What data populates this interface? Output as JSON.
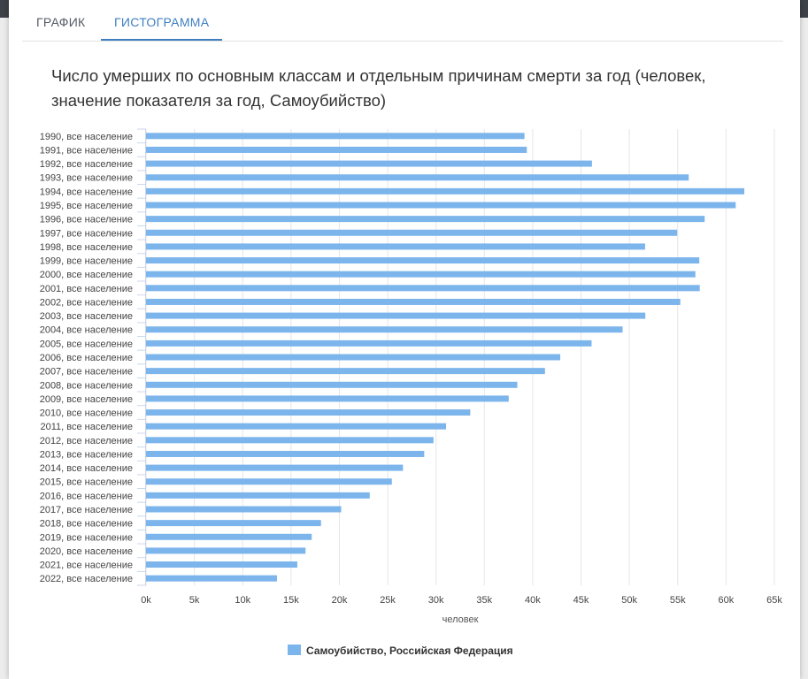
{
  "tabs": [
    {
      "label": "ГРАФИК",
      "active": false
    },
    {
      "label": "ГИСТОГРАММА",
      "active": true
    }
  ],
  "chart_data": {
    "type": "bar",
    "orientation": "horizontal",
    "title": "Число умерших по основным классам и отдельным причинам смерти за год (человек, значение показателя за год, Самоубийство)",
    "categories": [
      "1990, все население",
      "1991, все население",
      "1992, все население",
      "1993, все население",
      "1994, все население",
      "1995, все население",
      "1996, все население",
      "1997, все население",
      "1998, все население",
      "1999, все население",
      "2000, все население",
      "2001, все население",
      "2002, все население",
      "2003, все население",
      "2004, все население",
      "2005, все население",
      "2006, все население",
      "2007, все население",
      "2008, все население",
      "2009, все население",
      "2010, все население",
      "2011, все население",
      "2012, все население",
      "2013, все население",
      "2014, все население",
      "2015, все население",
      "2016, все население",
      "2017, все население",
      "2018, все население",
      "2019, все население",
      "2020, все население",
      "2021, все население",
      "2022, все население"
    ],
    "series": [
      {
        "name": "Самоубийство, Российская Федерация",
        "color": "#7cb5ec",
        "values": [
          39150,
          39390,
          46130,
          56140,
          61890,
          61000,
          57790,
          54950,
          51630,
          57230,
          56830,
          57280,
          55270,
          51650,
          49300,
          46090,
          42850,
          41270,
          38410,
          37520,
          33540,
          31040,
          29740,
          28780,
          26580,
          25430,
          23140,
          20190,
          18100,
          17140,
          16500,
          15650,
          13550
        ]
      }
    ],
    "xlabel": "человек",
    "xlim": [
      0,
      65000
    ],
    "xticks": [
      0,
      5000,
      10000,
      15000,
      20000,
      25000,
      30000,
      35000,
      40000,
      45000,
      50000,
      55000,
      60000,
      65000
    ],
    "xtick_labels": [
      "0k",
      "5k",
      "10k",
      "15k",
      "20k",
      "25k",
      "30k",
      "35k",
      "40k",
      "45k",
      "50k",
      "55k",
      "60k",
      "65k"
    ],
    "grid": true,
    "legend_position": "bottom-center"
  }
}
